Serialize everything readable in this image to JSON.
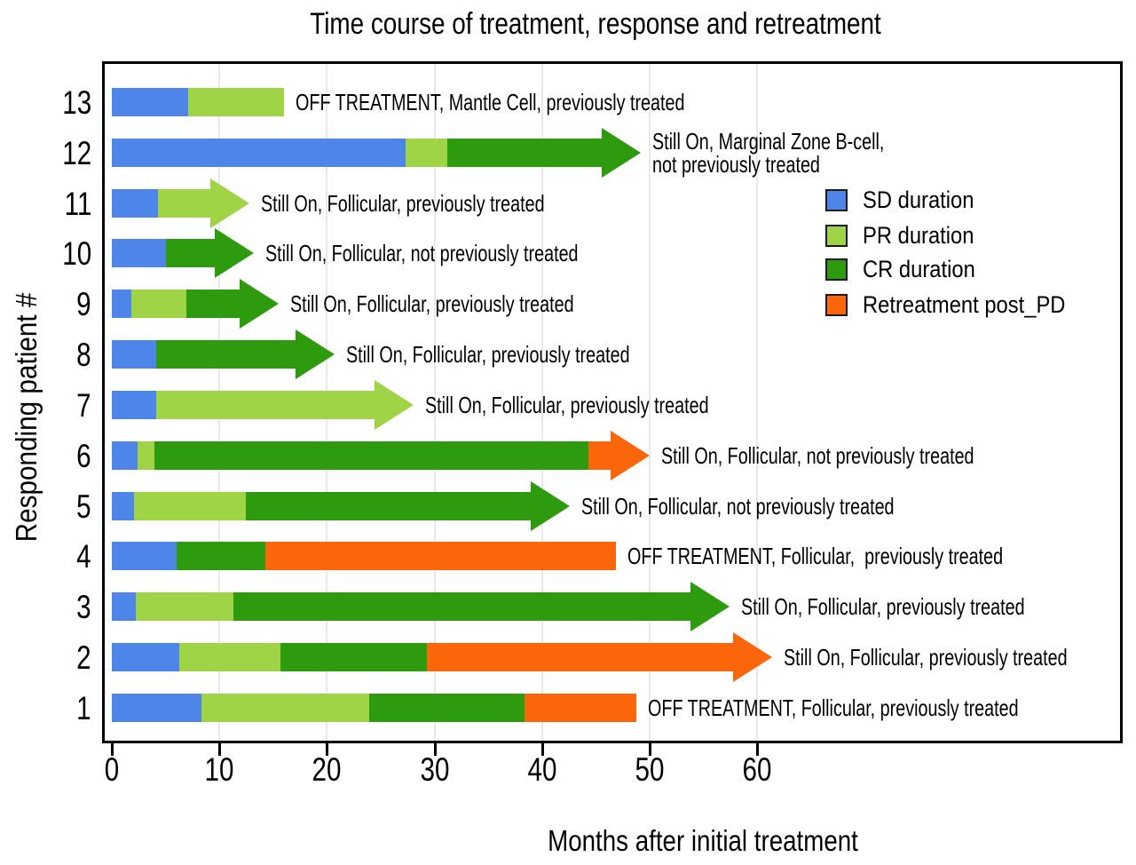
{
  "title": "Time course of treatment, response and retreatment",
  "x_axis": {
    "label": "Months after initial treatment",
    "tick_months": [
      0,
      10,
      20,
      30,
      40,
      50,
      60
    ],
    "gridline_months": [
      10,
      20,
      30,
      40,
      50,
      60
    ]
  },
  "y_axis": {
    "label": "Responding patient #"
  },
  "legend": {
    "items": [
      {
        "key": "SD",
        "label": "SD duration",
        "color": "#4d86e8"
      },
      {
        "key": "PR",
        "label": "PR duration",
        "color": "#a0d447"
      },
      {
        "key": "CR",
        "label": "CR duration",
        "color": "#2e9b0e"
      },
      {
        "key": "RT",
        "label": "Retreatment post_PD",
        "color": "#fc660b"
      }
    ]
  },
  "chart_data": {
    "type": "bar",
    "subtype": "horizontal-stacked-swimmer",
    "unit": "months",
    "xlabel": "Months after initial treatment",
    "ylabel": "Responding patient #",
    "xlim": [
      0,
      94
    ],
    "grid": true,
    "patients": [
      {
        "id": "13",
        "arrow": false,
        "segments": [
          {
            "type": "SD",
            "start": 0,
            "end": 7.1
          },
          {
            "type": "PR",
            "start": 7.1,
            "end": 16.0
          }
        ],
        "annotation_lines": [
          "OFF TREATMENT, Mantle Cell, previously treated"
        ]
      },
      {
        "id": "12",
        "arrow": true,
        "segments": [
          {
            "type": "SD",
            "start": 0,
            "end": 27.3
          },
          {
            "type": "PR",
            "start": 27.3,
            "end": 31.2
          },
          {
            "type": "CR",
            "start": 31.2,
            "end": 49.2
          }
        ],
        "annotation_lines": [
          "Still On, Marginal Zone B-cell,",
          "not previously treated"
        ]
      },
      {
        "id": "11",
        "arrow": true,
        "segments": [
          {
            "type": "SD",
            "start": 0,
            "end": 4.3
          },
          {
            "type": "PR",
            "start": 4.3,
            "end": 12.8
          }
        ],
        "annotation_lines": [
          "Still On, Follicular, previously treated"
        ]
      },
      {
        "id": "10",
        "arrow": true,
        "segments": [
          {
            "type": "SD",
            "start": 0,
            "end": 5.0
          },
          {
            "type": "CR",
            "start": 5.0,
            "end": 13.2
          }
        ],
        "annotation_lines": [
          "Still On, Follicular, not previously treated"
        ]
      },
      {
        "id": "9",
        "arrow": true,
        "segments": [
          {
            "type": "SD",
            "start": 0,
            "end": 1.8
          },
          {
            "type": "PR",
            "start": 1.8,
            "end": 6.9
          },
          {
            "type": "CR",
            "start": 6.9,
            "end": 15.5
          }
        ],
        "annotation_lines": [
          "Still On, Follicular, previously treated"
        ]
      },
      {
        "id": "8",
        "arrow": true,
        "segments": [
          {
            "type": "SD",
            "start": 0,
            "end": 4.1
          },
          {
            "type": "CR",
            "start": 4.1,
            "end": 20.7
          }
        ],
        "annotation_lines": [
          "Still On, Follicular, previously treated"
        ]
      },
      {
        "id": "7",
        "arrow": true,
        "segments": [
          {
            "type": "SD",
            "start": 0,
            "end": 4.1
          },
          {
            "type": "PR",
            "start": 4.1,
            "end": 28.1
          }
        ],
        "annotation_lines": [
          "Still On, Follicular, previously treated"
        ]
      },
      {
        "id": "6",
        "arrow": true,
        "segments": [
          {
            "type": "SD",
            "start": 0,
            "end": 2.4
          },
          {
            "type": "PR",
            "start": 2.4,
            "end": 4.0
          },
          {
            "type": "CR",
            "start": 4.0,
            "end": 44.3
          },
          {
            "type": "RT",
            "start": 44.3,
            "end": 50.0
          }
        ],
        "annotation_lines": [
          "Still On, Follicular, not previously treated"
        ]
      },
      {
        "id": "5",
        "arrow": true,
        "segments": [
          {
            "type": "SD",
            "start": 0,
            "end": 2.1
          },
          {
            "type": "PR",
            "start": 2.1,
            "end": 12.5
          },
          {
            "type": "CR",
            "start": 12.5,
            "end": 42.6
          }
        ],
        "annotation_lines": [
          "Still On, Follicular, not previously treated"
        ]
      },
      {
        "id": "4",
        "arrow": false,
        "segments": [
          {
            "type": "SD",
            "start": 0,
            "end": 6.0
          },
          {
            "type": "CR",
            "start": 6.0,
            "end": 14.3
          },
          {
            "type": "RT",
            "start": 14.3,
            "end": 46.9
          }
        ],
        "annotation_lines": [
          "OFF TREATMENT, Follicular,  previously treated"
        ]
      },
      {
        "id": "3",
        "arrow": true,
        "segments": [
          {
            "type": "SD",
            "start": 0,
            "end": 2.2
          },
          {
            "type": "PR",
            "start": 2.2,
            "end": 11.3
          },
          {
            "type": "CR",
            "start": 11.3,
            "end": 57.4
          }
        ],
        "annotation_lines": [
          "Still On, Follicular, previously treated"
        ]
      },
      {
        "id": "2",
        "arrow": true,
        "segments": [
          {
            "type": "SD",
            "start": 0,
            "end": 6.3
          },
          {
            "type": "PR",
            "start": 6.3,
            "end": 15.7
          },
          {
            "type": "CR",
            "start": 15.7,
            "end": 29.3
          },
          {
            "type": "RT",
            "start": 29.3,
            "end": 61.4
          }
        ],
        "annotation_lines": [
          "Still On, Follicular, previously treated"
        ]
      },
      {
        "id": "1",
        "arrow": false,
        "segments": [
          {
            "type": "SD",
            "start": 0,
            "end": 8.3
          },
          {
            "type": "PR",
            "start": 8.3,
            "end": 23.9
          },
          {
            "type": "CR",
            "start": 23.9,
            "end": 38.4
          },
          {
            "type": "RT",
            "start": 38.4,
            "end": 48.8
          }
        ],
        "annotation_lines": [
          "OFF TREATMENT, Follicular, previously treated"
        ]
      }
    ]
  }
}
